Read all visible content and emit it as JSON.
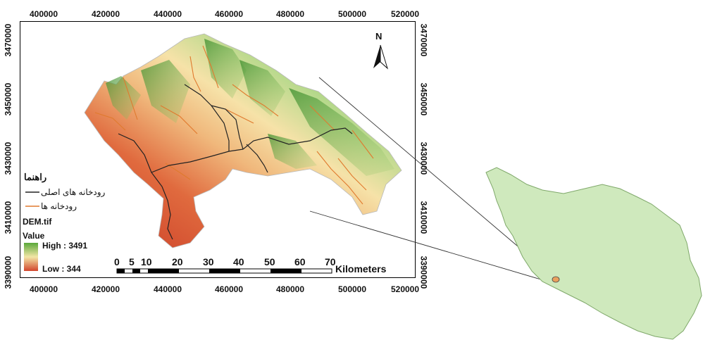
{
  "x_ticks": [
    "400000",
    "420000",
    "440000",
    "460000",
    "480000",
    "500000",
    "520000"
  ],
  "y_ticks": [
    "3470000",
    "3450000",
    "3430000",
    "3410000",
    "3390000"
  ],
  "north_label": "N",
  "legend": {
    "title": "راهنما",
    "main_rivers": "رودخانه های اصلی",
    "rivers": "رودخانه ها",
    "layer": "DEM.tif",
    "value_label": "Value",
    "high": "High : 3491",
    "low": "Low : 344",
    "main_river_color": "#222222",
    "river_color": "#e07a2e",
    "high_color": "#5aa83a",
    "low_color": "#d2452c"
  },
  "scale_bar": {
    "labels": [
      "0",
      "5",
      "10",
      "20",
      "30",
      "40",
      "50",
      "60",
      "70"
    ],
    "unit": "Kilometers"
  },
  "inset": {
    "fill": "#cfe9bd",
    "outline": "#7fa86a"
  }
}
